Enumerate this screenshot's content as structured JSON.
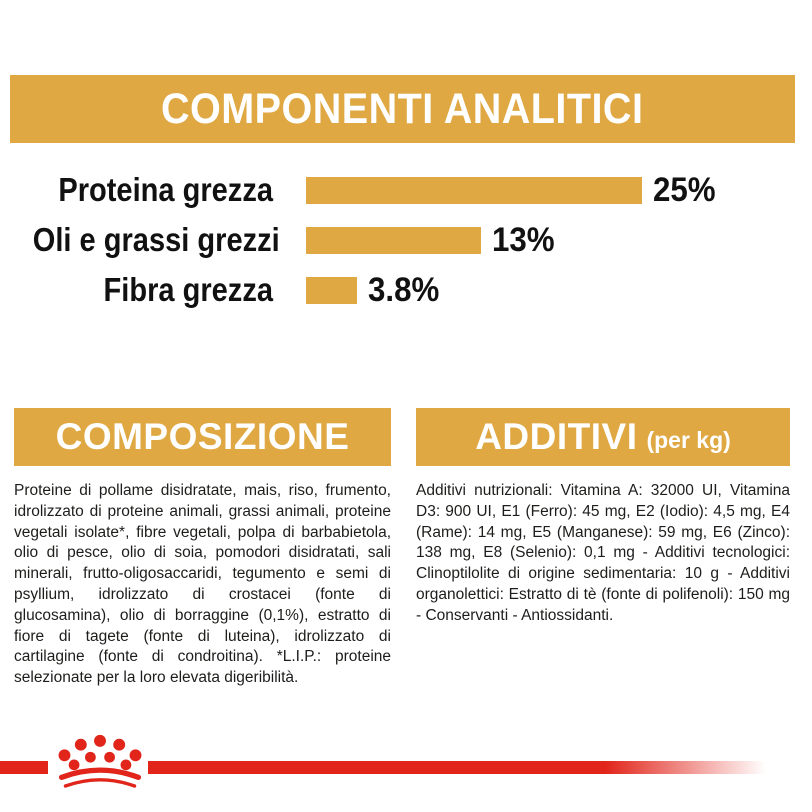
{
  "colors": {
    "gold": "#DFA843",
    "red": "#E1251B",
    "text": "#1d1d1b"
  },
  "header": {
    "title": "COMPONENTI ANALITICI"
  },
  "chart_data": {
    "type": "bar",
    "orientation": "horizontal",
    "title": "COMPONENTI ANALITICI",
    "categories": [
      "Proteina grezza",
      "Oli e grassi grezzi",
      "Fibra grezza"
    ],
    "values": [
      25,
      13,
      3.8
    ],
    "value_labels": [
      "25%",
      "13%",
      "3.8%"
    ],
    "xlim": [
      0,
      25
    ],
    "bar_color": "#DFA843",
    "grid": false,
    "legend": false
  },
  "composition": {
    "title": "COMPOSIZIONE",
    "body": "Proteine di pollame disidratate, mais, riso, frumento, idrolizzato di proteine animali, grassi animali, proteine vegetali isolate*, fibre vegetali, polpa di barbabietola, olio di pesce, olio di soia, pomodori disidratati, sali minerali, frutto-oligosaccaridi, tegumento e semi di psyllium, idrolizzato di crostacei (fonte di glucosamina), olio di borraggine (0,1%), estratto di fiore di tagete (fonte di luteina), idrolizzato di cartilagine (fonte di condroitina). *L.I.P.: proteine selezionate per la loro elevata digeribilità."
  },
  "additives": {
    "title": "ADDITIVI",
    "subtitle": "(per kg)",
    "body": "Additivi nutrizionali: Vitamina A: 32000 UI, Vitamina D3: 900 UI, E1 (Ferro): 45 mg, E2 (Iodio): 4,5 mg, E4 (Rame): 14 mg, E5 (Manganese): 59 mg, E6 (Zinco): 138 mg, E8 (Selenio): 0,1 mg - Additivi tecnologici: Clinoptilolite di origine sedimentaria: 10 g - Additivi organolettici: Estratto di tè (fonte di polifenoli): 150 mg - Conservanti - Antiossidanti."
  },
  "footer": {
    "logo_icon": "royal-canin-crown-logo"
  }
}
